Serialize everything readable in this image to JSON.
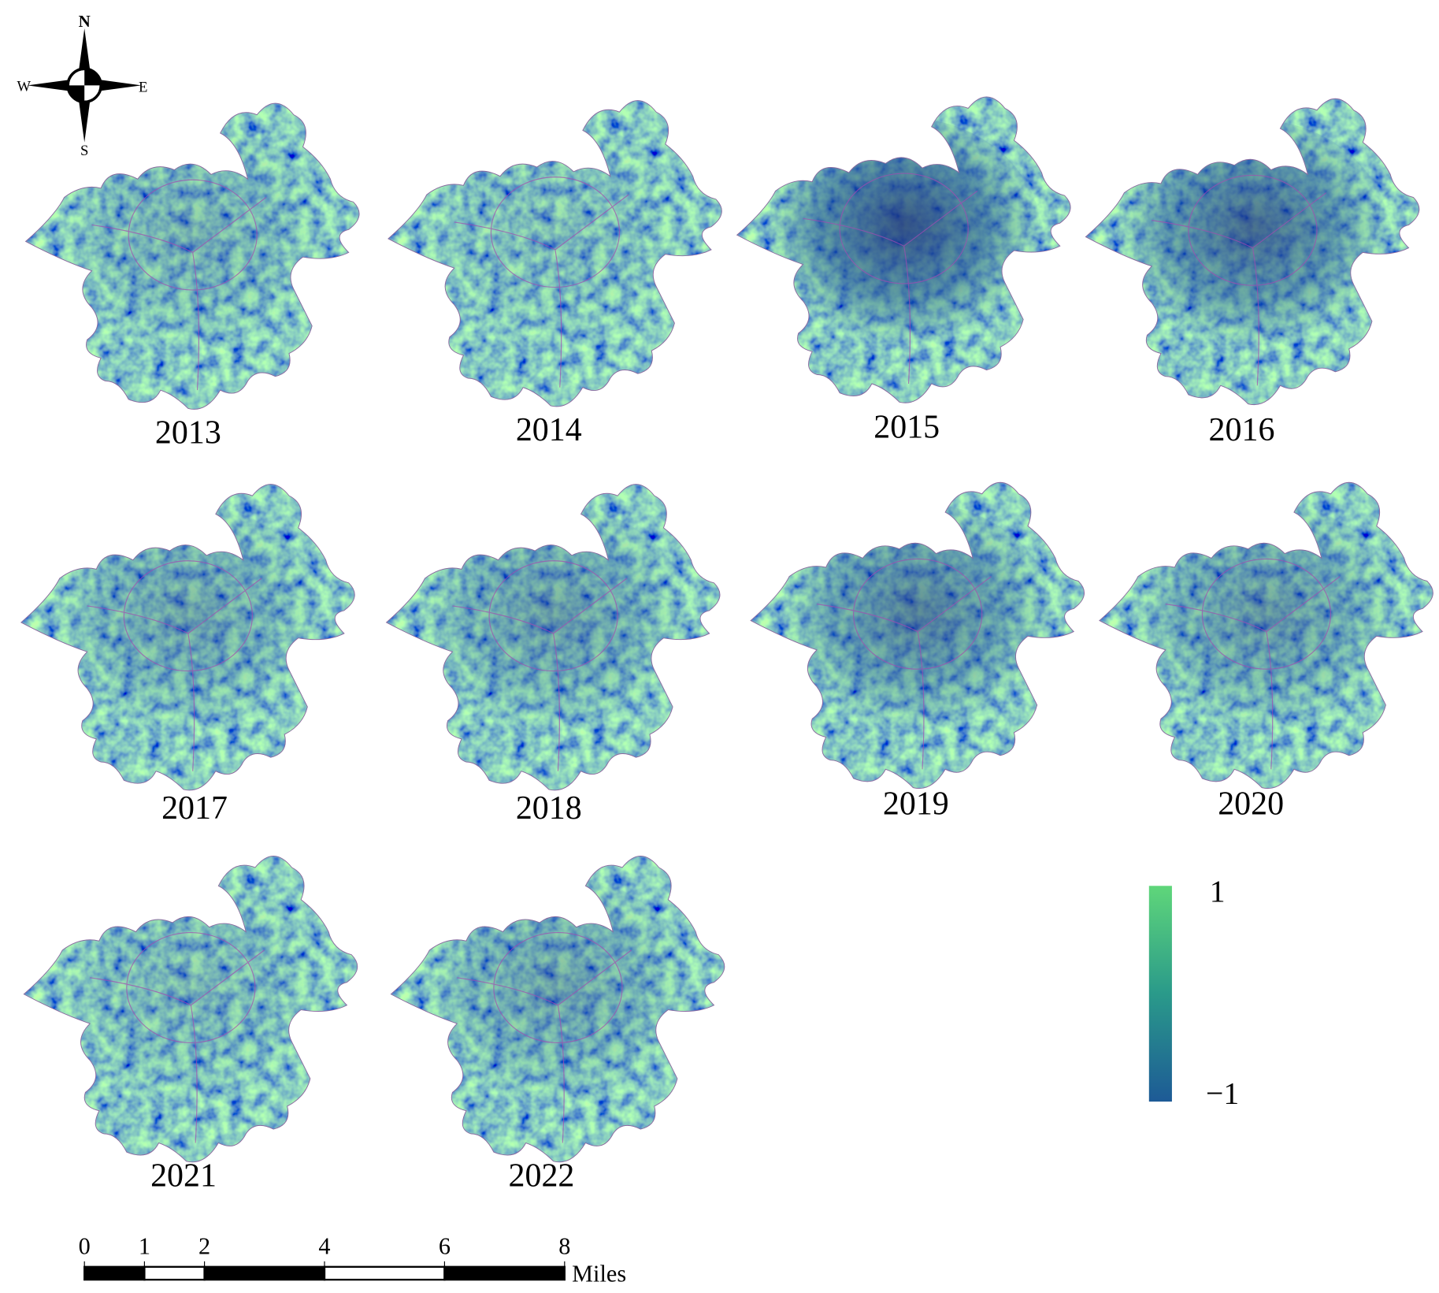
{
  "compass": {
    "north": "N",
    "south": "S",
    "west": "W",
    "east": "E"
  },
  "panels": [
    "2013",
    "2014",
    "2015",
    "2016",
    "2017",
    "2018",
    "2019",
    "2020",
    "2021",
    "2022"
  ],
  "legend": {
    "max": "1",
    "min": "−1"
  },
  "scale_bar": {
    "ticks": [
      0,
      1,
      2,
      4,
      6,
      8
    ],
    "unit": "Miles"
  }
}
